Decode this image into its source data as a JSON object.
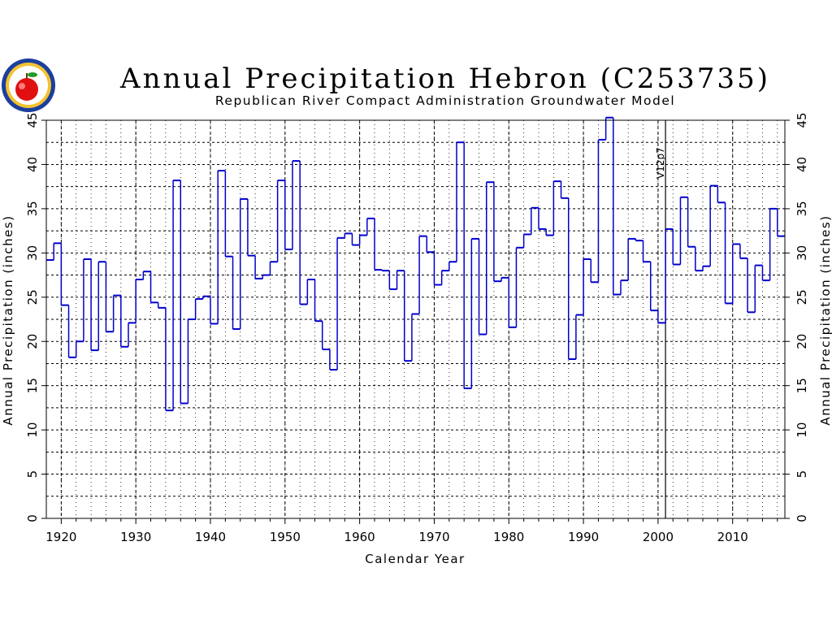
{
  "chart_data": {
    "type": "line",
    "step": true,
    "title": "Annual Precipitation Hebron (C253735)",
    "subtitle": "Republican River Compact Administration Groundwater Model",
    "xlabel": "Calendar Year",
    "ylabel": "Annual Precipitation (inches)",
    "xlim": [
      1918,
      2017
    ],
    "ylim": [
      0,
      45
    ],
    "x_ticks": [
      1920,
      1930,
      1940,
      1950,
      1960,
      1970,
      1980,
      1990,
      2000,
      2010
    ],
    "y_ticks": [
      0,
      5,
      10,
      15,
      20,
      25,
      30,
      35,
      40,
      45
    ],
    "grid": true,
    "reference_line": {
      "x": 2001,
      "label": "V12p7"
    },
    "series": [
      {
        "color": "#0000cc",
        "x": [
          1918,
          1919,
          1920,
          1921,
          1922,
          1923,
          1924,
          1925,
          1926,
          1927,
          1928,
          1929,
          1930,
          1931,
          1932,
          1933,
          1934,
          1935,
          1936,
          1937,
          1938,
          1939,
          1940,
          1941,
          1942,
          1943,
          1944,
          1945,
          1946,
          1947,
          1948,
          1949,
          1950,
          1951,
          1952,
          1953,
          1954,
          1955,
          1956,
          1957,
          1958,
          1959,
          1960,
          1961,
          1962,
          1963,
          1964,
          1965,
          1966,
          1967,
          1968,
          1969,
          1970,
          1971,
          1972,
          1973,
          1974,
          1975,
          1976,
          1977,
          1978,
          1979,
          1980,
          1981,
          1982,
          1983,
          1984,
          1985,
          1986,
          1987,
          1988,
          1989,
          1990,
          1991,
          1992,
          1993,
          1994,
          1995,
          1996,
          1997,
          1998,
          1999,
          2000,
          2001,
          2002,
          2003,
          2004,
          2005,
          2006,
          2007,
          2008,
          2009,
          2010,
          2011,
          2012,
          2013,
          2014,
          2015,
          2016
        ],
        "values": [
          29.2,
          31.1,
          24.1,
          18.2,
          20.0,
          29.3,
          19.0,
          29.0,
          21.1,
          25.2,
          19.4,
          22.1,
          27.0,
          27.9,
          24.4,
          23.8,
          12.2,
          38.2,
          13.0,
          22.5,
          24.8,
          25.1,
          22.0,
          39.3,
          29.6,
          21.4,
          36.1,
          29.7,
          27.1,
          27.5,
          29.0,
          38.2,
          30.4,
          40.4,
          24.2,
          27.0,
          22.3,
          19.1,
          16.8,
          31.7,
          32.2,
          30.9,
          32.0,
          33.9,
          28.1,
          28.0,
          25.9,
          28.0,
          17.8,
          23.1,
          31.9,
          30.1,
          26.4,
          28.0,
          29.0,
          42.5,
          14.7,
          31.6,
          20.8,
          38.0,
          26.8,
          27.2,
          21.6,
          30.6,
          32.1,
          35.1,
          32.7,
          32.0,
          38.1,
          36.2,
          18.0,
          23.0,
          29.3,
          26.7,
          42.8,
          45.3,
          25.3,
          26.9,
          31.6,
          31.4,
          29.0,
          23.5,
          22.1,
          32.7,
          28.7,
          36.3,
          30.7,
          28.0,
          28.5,
          37.6,
          35.7,
          24.3,
          31.0,
          29.4,
          23.3,
          28.6,
          26.9,
          35.0,
          31.9
        ]
      }
    ]
  },
  "logo": {
    "name": "state-seal-logo"
  }
}
